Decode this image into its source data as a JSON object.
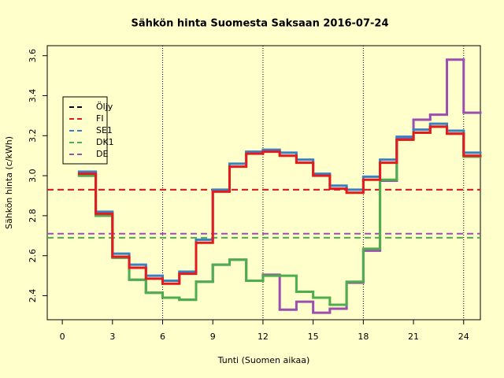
{
  "chart_data": {
    "type": "step",
    "title": "Sähkön hinta Suomesta Saksaan 2016-07-24",
    "xlabel": "Tunti (Suomen aikaa)",
    "ylabel": "Sähkön hinta (c/kWh)",
    "x": [
      1,
      2,
      3,
      4,
      5,
      6,
      7,
      8,
      9,
      10,
      11,
      12,
      13,
      14,
      15,
      16,
      17,
      18,
      19,
      20,
      21,
      22,
      23,
      24
    ],
    "series": [
      {
        "name": "Öljy",
        "color": "#000000",
        "values": [
          null,
          null,
          null,
          null,
          null,
          null,
          null,
          null,
          null,
          null,
          null,
          null,
          null,
          null,
          null,
          null,
          null,
          null,
          null,
          null,
          null,
          null,
          null,
          null
        ],
        "mean": null
      },
      {
        "name": "DE",
        "color": "#9b4fb0",
        "values": [
          3.0,
          2.8,
          2.59,
          2.48,
          2.415,
          2.39,
          2.38,
          2.47,
          2.555,
          2.58,
          2.475,
          2.505,
          2.33,
          2.37,
          2.315,
          2.335,
          2.465,
          2.625,
          2.975,
          3.185,
          3.28,
          3.305,
          3.58,
          3.315
        ],
        "mean": 2.71
      },
      {
        "name": "DK1",
        "color": "#4cae4c",
        "values": [
          3.0,
          2.8,
          2.59,
          2.48,
          2.415,
          2.39,
          2.38,
          2.47,
          2.555,
          2.58,
          2.475,
          2.5,
          2.5,
          2.42,
          2.39,
          2.355,
          2.47,
          2.635,
          2.98,
          3.18,
          3.215,
          3.245,
          3.21,
          3.095
        ],
        "mean": 2.69
      },
      {
        "name": "SE1",
        "color": "#3a7fc1",
        "values": [
          3.02,
          2.82,
          2.61,
          2.555,
          2.5,
          2.475,
          2.52,
          2.68,
          2.93,
          3.06,
          3.12,
          3.13,
          3.115,
          3.08,
          3.01,
          2.95,
          2.93,
          2.995,
          3.08,
          3.195,
          3.23,
          3.26,
          3.225,
          3.115
        ],
        "mean": 2.93
      },
      {
        "name": "FI",
        "color": "#e41a1c",
        "values": [
          3.01,
          2.81,
          2.595,
          2.54,
          2.485,
          2.46,
          2.51,
          2.665,
          2.92,
          3.045,
          3.11,
          3.12,
          3.1,
          3.065,
          3.0,
          2.935,
          2.915,
          2.98,
          3.065,
          3.18,
          3.215,
          3.245,
          3.21,
          3.1
        ],
        "mean": 2.93
      }
    ],
    "legend_order": [
      0,
      4,
      3,
      2,
      1
    ],
    "xlim": [
      -0.9,
      25
    ],
    "xticks": [
      0,
      3,
      6,
      9,
      12,
      15,
      18,
      21,
      24
    ],
    "ylim": [
      2.28,
      3.65
    ],
    "yticks": [
      2.4,
      2.6,
      2.8,
      3.0,
      3.2,
      3.4,
      3.6
    ],
    "vlines": [
      6,
      12,
      18,
      24
    ],
    "legend": "left"
  }
}
